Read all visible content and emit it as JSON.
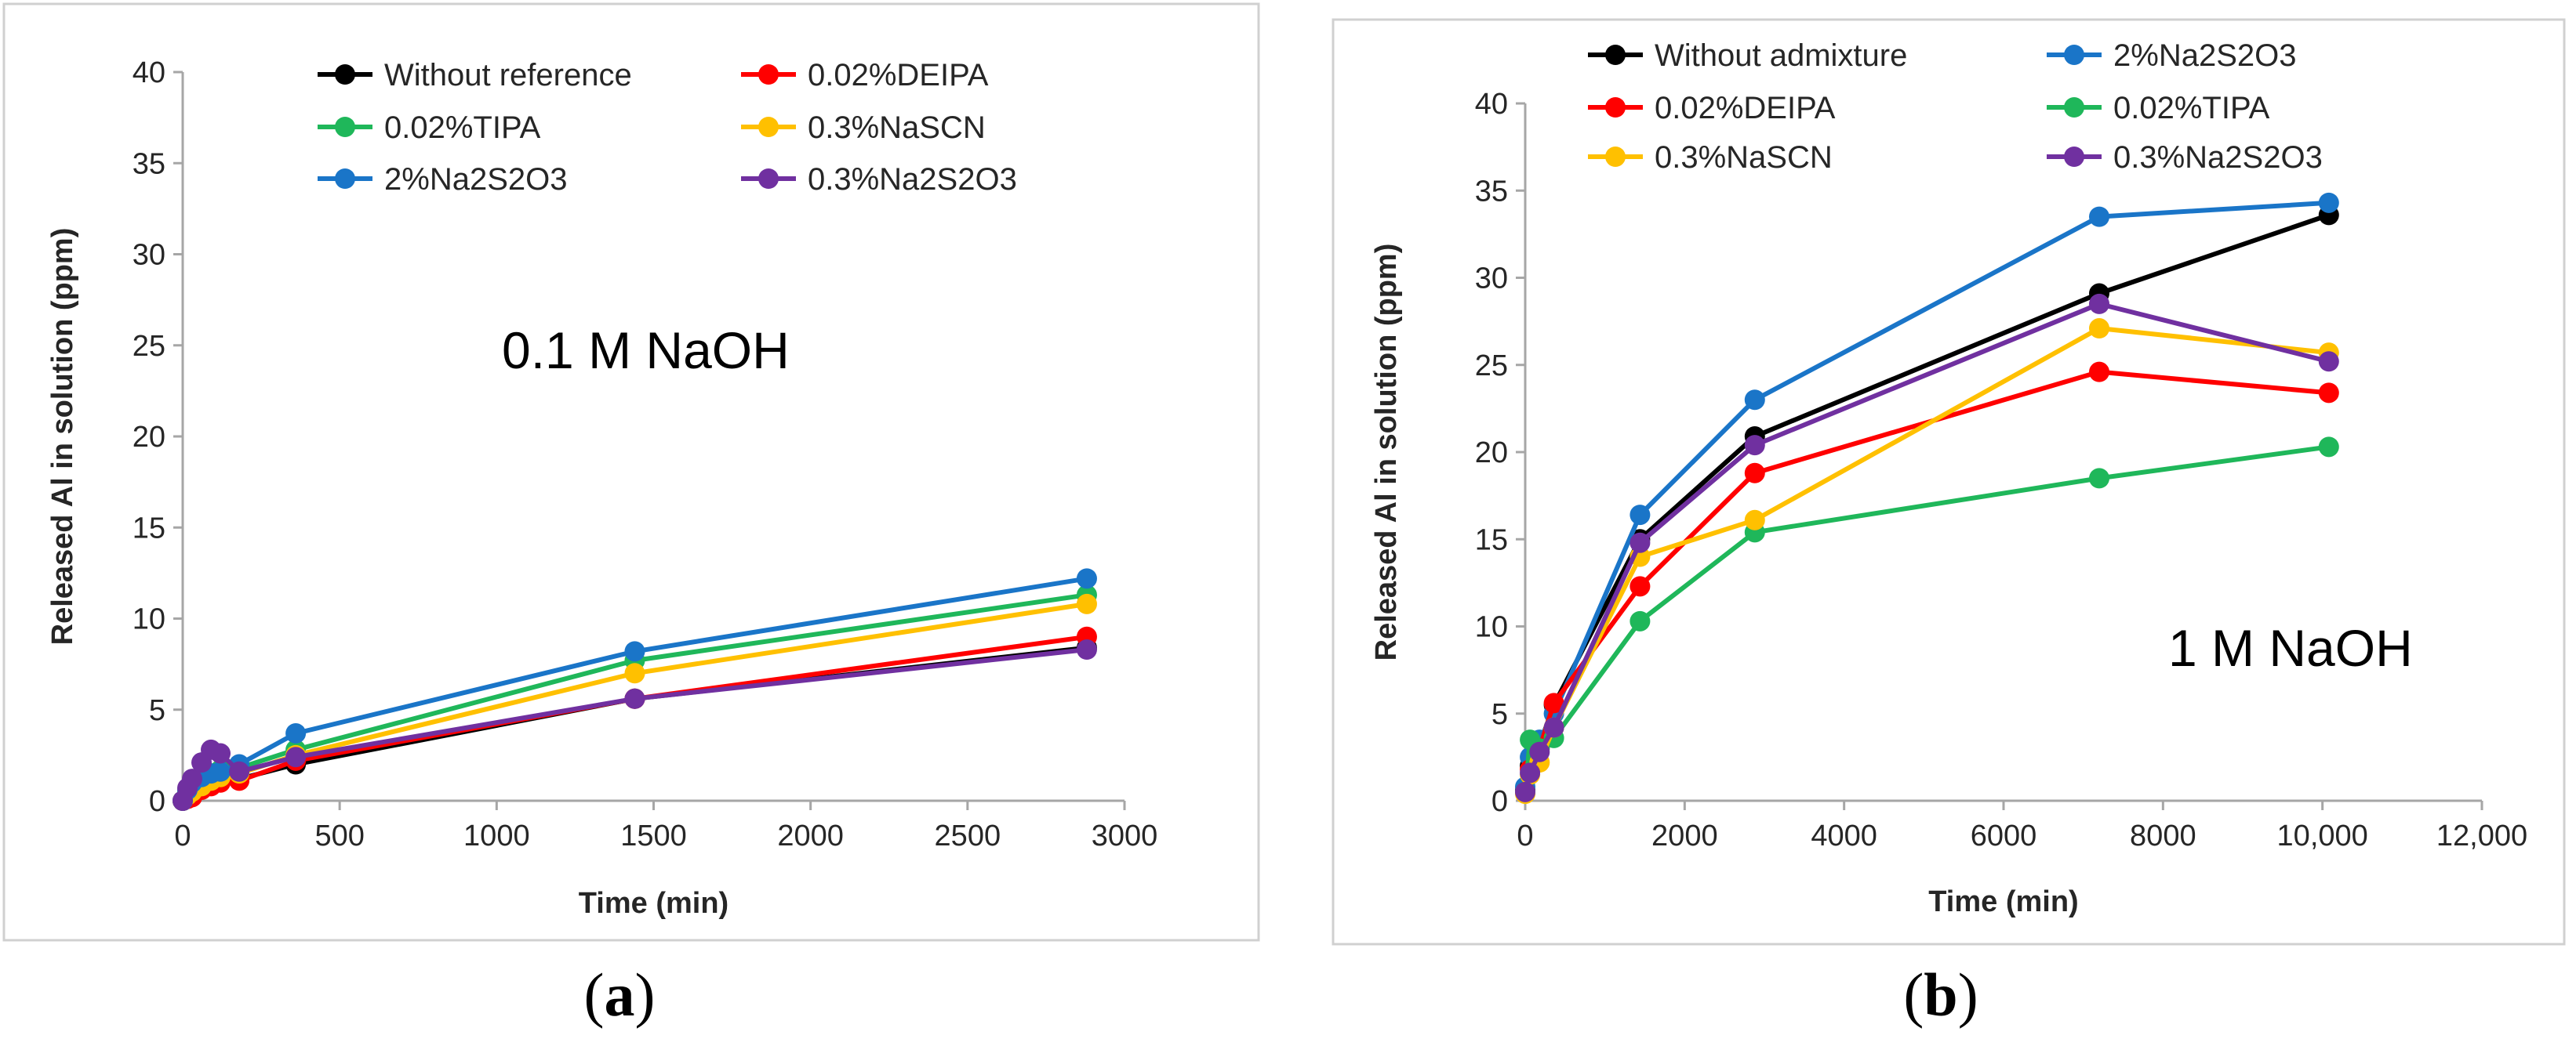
{
  "chart_data": [
    {
      "type": "line",
      "panel": "a",
      "caption": {
        "open": "(",
        "letter": "a",
        "close": ")"
      },
      "annotation": "0.1 M NaOH",
      "xlabel": "Time (min)",
      "ylabel": "Released Al in solution (ppm)",
      "xlim": [
        0,
        3000
      ],
      "ylim": [
        0,
        40
      ],
      "xticks": [
        0,
        500,
        1000,
        1500,
        2000,
        2500,
        3000
      ],
      "xtick_labels": [
        "0",
        "500",
        "1000",
        "1500",
        "2000",
        "2500",
        "3000"
      ],
      "yticks": [
        0,
        5,
        10,
        15,
        20,
        25,
        30,
        35,
        40
      ],
      "ytick_labels": [
        "0",
        "5",
        "10",
        "15",
        "20",
        "25",
        "30",
        "35",
        "40"
      ],
      "grid": false,
      "legend_position": "top",
      "series": [
        {
          "name": "Without reference",
          "color": "#000000",
          "x": [
            0,
            15,
            30,
            60,
            90,
            120,
            180,
            360,
            1440,
            2880
          ],
          "y": [
            0,
            0.3,
            0.5,
            0.8,
            1.0,
            1.1,
            1.2,
            2.0,
            5.6,
            8.4
          ]
        },
        {
          "name": "0.02%DEIPA",
          "color": "#ff0000",
          "x": [
            0,
            15,
            30,
            60,
            90,
            120,
            180,
            360,
            1440,
            2880
          ],
          "y": [
            0,
            0.1,
            0.2,
            0.6,
            0.8,
            1.0,
            1.1,
            2.2,
            5.6,
            9.0
          ]
        },
        {
          "name": "0.02%TIPA",
          "color": "#1fb75a",
          "x": [
            0,
            15,
            30,
            60,
            90,
            120,
            180,
            360,
            1440,
            2880
          ],
          "y": [
            0,
            0.5,
            0.8,
            1.2,
            1.5,
            1.7,
            1.8,
            2.8,
            7.7,
            11.3
          ]
        },
        {
          "name": "0.3%NaSCN",
          "color": "#ffc000",
          "x": [
            0,
            15,
            30,
            60,
            90,
            120,
            180,
            360,
            1440,
            2880
          ],
          "y": [
            0,
            0.3,
            0.5,
            0.8,
            1.1,
            1.3,
            1.5,
            2.5,
            7.0,
            10.8
          ]
        },
        {
          "name": "2%Na2S2O3",
          "color": "#1a75c8",
          "x": [
            0,
            15,
            30,
            60,
            90,
            120,
            180,
            360,
            1440,
            2880
          ],
          "y": [
            0,
            0.6,
            1.0,
            1.3,
            1.5,
            1.6,
            2.0,
            3.7,
            8.2,
            12.2
          ]
        },
        {
          "name": "0.3%Na2S2O3",
          "color": "#7030a0",
          "x": [
            0,
            15,
            30,
            60,
            90,
            120,
            180,
            360,
            1440,
            2880
          ],
          "y": [
            0,
            0.7,
            1.2,
            2.1,
            2.8,
            2.6,
            1.6,
            2.4,
            5.6,
            8.3
          ]
        }
      ]
    },
    {
      "type": "line",
      "panel": "b",
      "caption": {
        "open": "(",
        "letter": "b",
        "close": ")"
      },
      "annotation": "1 M NaOH",
      "xlabel": "Time (min)",
      "ylabel": "Released Al in solution (ppm)",
      "xlim": [
        0,
        12000
      ],
      "ylim": [
        0,
        40
      ],
      "xticks": [
        0,
        2000,
        4000,
        6000,
        8000,
        10000,
        12000
      ],
      "xtick_labels": [
        "0",
        "2000",
        "4000",
        "6000",
        "8000",
        "10,000",
        "12,000"
      ],
      "yticks": [
        0,
        5,
        10,
        15,
        20,
        25,
        30,
        35,
        40
      ],
      "ytick_labels": [
        "0",
        "5",
        "10",
        "15",
        "20",
        "25",
        "30",
        "35",
        "40"
      ],
      "grid": false,
      "legend_position": "top",
      "series": [
        {
          "name": "Without admixture",
          "color": "#000000",
          "x": [
            0,
            60,
            180,
            360,
            1440,
            2880,
            7200,
            10080
          ],
          "y": [
            0.6,
            2.0,
            3.2,
            5.5,
            15.0,
            20.9,
            29.1,
            33.6
          ]
        },
        {
          "name": "2%Na2S2O3",
          "color": "#1a75c8",
          "x": [
            0,
            60,
            180,
            360,
            1440,
            2880,
            7200,
            10080
          ],
          "y": [
            0.8,
            2.5,
            3.5,
            5.0,
            16.4,
            23.0,
            33.5,
            34.3
          ]
        },
        {
          "name": "0.02%DEIPA",
          "color": "#ff0000",
          "x": [
            0,
            60,
            180,
            360,
            1440,
            2880,
            7200,
            10080
          ],
          "y": [
            0.5,
            1.8,
            3.0,
            5.6,
            12.3,
            18.8,
            24.6,
            23.4
          ]
        },
        {
          "name": "0.02%TIPA",
          "color": "#1fb75a",
          "x": [
            0,
            60,
            180,
            360,
            1440,
            2880,
            7200,
            10080
          ],
          "y": [
            0.5,
            3.5,
            3.0,
            3.6,
            10.3,
            15.4,
            18.5,
            20.3
          ]
        },
        {
          "name": "0.3%NaSCN",
          "color": "#ffc000",
          "x": [
            0,
            60,
            180,
            360,
            1440,
            2880,
            7200,
            10080
          ],
          "y": [
            0.4,
            1.5,
            2.2,
            4.2,
            14.0,
            16.1,
            27.1,
            25.7
          ]
        },
        {
          "name": "0.3%Na2S2O3",
          "color": "#7030a0",
          "x": [
            0,
            60,
            180,
            360,
            1440,
            2880,
            7200,
            10080
          ],
          "y": [
            0.5,
            1.6,
            2.8,
            4.2,
            14.8,
            20.4,
            28.5,
            25.2
          ]
        }
      ]
    }
  ]
}
